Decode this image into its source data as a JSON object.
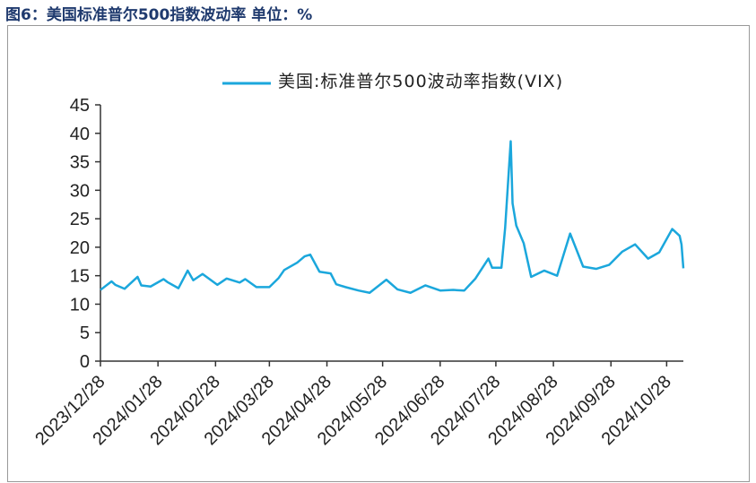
{
  "chart_data": {
    "type": "line",
    "title": "图6：美国标准普尔500指数波动率  单位：%",
    "x": [
      "2023/12/28",
      "2024/01/03",
      "2024/01/05",
      "2024/01/10",
      "2024/01/17",
      "2024/01/19",
      "2024/01/24",
      "2024/01/31",
      "2024/02/02",
      "2024/02/08",
      "2024/02/13",
      "2024/02/16",
      "2024/02/21",
      "2024/02/29",
      "2024/03/05",
      "2024/03/12",
      "2024/03/15",
      "2024/03/21",
      "2024/03/28",
      "2024/04/02",
      "2024/04/05",
      "2024/04/12",
      "2024/04/16",
      "2024/04/19",
      "2024/04/24",
      "2024/04/30",
      "2024/05/03",
      "2024/05/08",
      "2024/05/15",
      "2024/05/21",
      "2024/05/30",
      "2024/06/05",
      "2024/06/12",
      "2024/06/20",
      "2024/06/28",
      "2024/07/05",
      "2024/07/11",
      "2024/07/17",
      "2024/07/24",
      "2024/07/26",
      "2024/07/31",
      "2024/08/02",
      "2024/08/05",
      "2024/08/06",
      "2024/08/08",
      "2024/08/12",
      "2024/08/16",
      "2024/08/23",
      "2024/08/30",
      "2024/09/06",
      "2024/09/10",
      "2024/09/13",
      "2024/09/20",
      "2024/09/27",
      "2024/10/04",
      "2024/10/11",
      "2024/10/18",
      "2024/10/24",
      "2024/10/31",
      "2024/11/04",
      "2024/11/05",
      "2024/11/06"
    ],
    "series": [
      {
        "name": "美国:标准普尔500波动率指数(VIX)",
        "color": "#1ba7dc",
        "values": [
          12.5,
          14.0,
          13.4,
          12.7,
          14.8,
          13.3,
          13.1,
          14.4,
          13.9,
          12.8,
          15.9,
          14.2,
          15.3,
          13.4,
          14.5,
          13.8,
          14.4,
          13.0,
          13.0,
          14.6,
          16.0,
          17.3,
          18.4,
          18.7,
          15.7,
          15.4,
          13.5,
          13.0,
          12.4,
          12.0,
          14.3,
          12.6,
          12.0,
          13.3,
          12.4,
          12.5,
          12.4,
          14.5,
          18.0,
          16.4,
          16.4,
          23.4,
          38.6,
          27.7,
          23.8,
          20.7,
          14.8,
          15.9,
          15.0,
          22.4,
          19.1,
          16.6,
          16.2,
          16.9,
          19.2,
          20.5,
          18.0,
          19.1,
          23.2,
          22.0,
          20.5,
          16.3
        ]
      }
    ],
    "xlim": [
      "2023/12/28",
      "2024/11/06"
    ],
    "xticks": [
      "2023/12/28",
      "2024/01/28",
      "2024/02/28",
      "2024/03/28",
      "2024/04/28",
      "2024/05/28",
      "2024/06/28",
      "2024/07/28",
      "2024/08/28",
      "2024/09/28",
      "2024/10/28"
    ],
    "ylim": [
      0,
      45
    ],
    "yticks": [
      0,
      5,
      10,
      15,
      20,
      25,
      30,
      35,
      40,
      45
    ],
    "grid": false
  }
}
